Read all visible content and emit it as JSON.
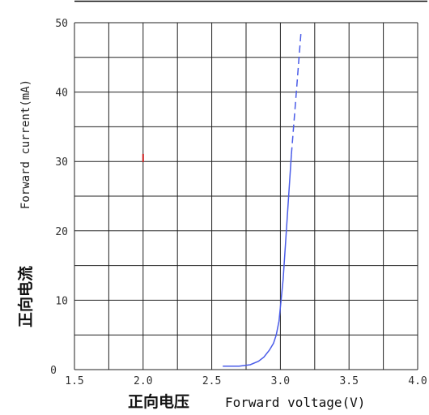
{
  "chart_data": {
    "type": "line",
    "xlabel_cn": "正向电压",
    "xlabel_en": "Forward voltage(V)",
    "ylabel_cn": "正向电流",
    "ylabel_en": "Forward current(mA)",
    "xlim": [
      1.5,
      4.0
    ],
    "ylim": [
      0,
      50
    ],
    "x_ticks": [
      "1.5",
      "2.0",
      "2.5",
      "3.0",
      "3.5",
      "4.0"
    ],
    "y_ticks": [
      "0",
      "10",
      "20",
      "30",
      "40",
      "50"
    ],
    "grid": true,
    "series": [
      {
        "color": "#4a5ce8",
        "solid": {
          "x": [
            2.58,
            2.7,
            2.78,
            2.84,
            2.88,
            2.92,
            2.95,
            2.97,
            2.99,
            3.0,
            3.02,
            3.03,
            3.04,
            3.05,
            3.06,
            3.07,
            3.08
          ],
          "y": [
            0.5,
            0.5,
            0.7,
            1.2,
            1.8,
            2.8,
            3.8,
            5.0,
            7.0,
            9.0,
            13.0,
            16.0,
            19.0,
            22.0,
            25.0,
            28.0,
            31.0
          ]
        },
        "dashed": {
          "x": [
            3.08,
            3.1,
            3.12,
            3.14,
            3.15
          ],
          "y": [
            31.0,
            36.0,
            41.0,
            46.0,
            48.5
          ]
        }
      }
    ],
    "annotations": [
      {
        "x": 2.0,
        "y": 30.5,
        "color": "#cc2222",
        "mark": "tick"
      }
    ]
  }
}
